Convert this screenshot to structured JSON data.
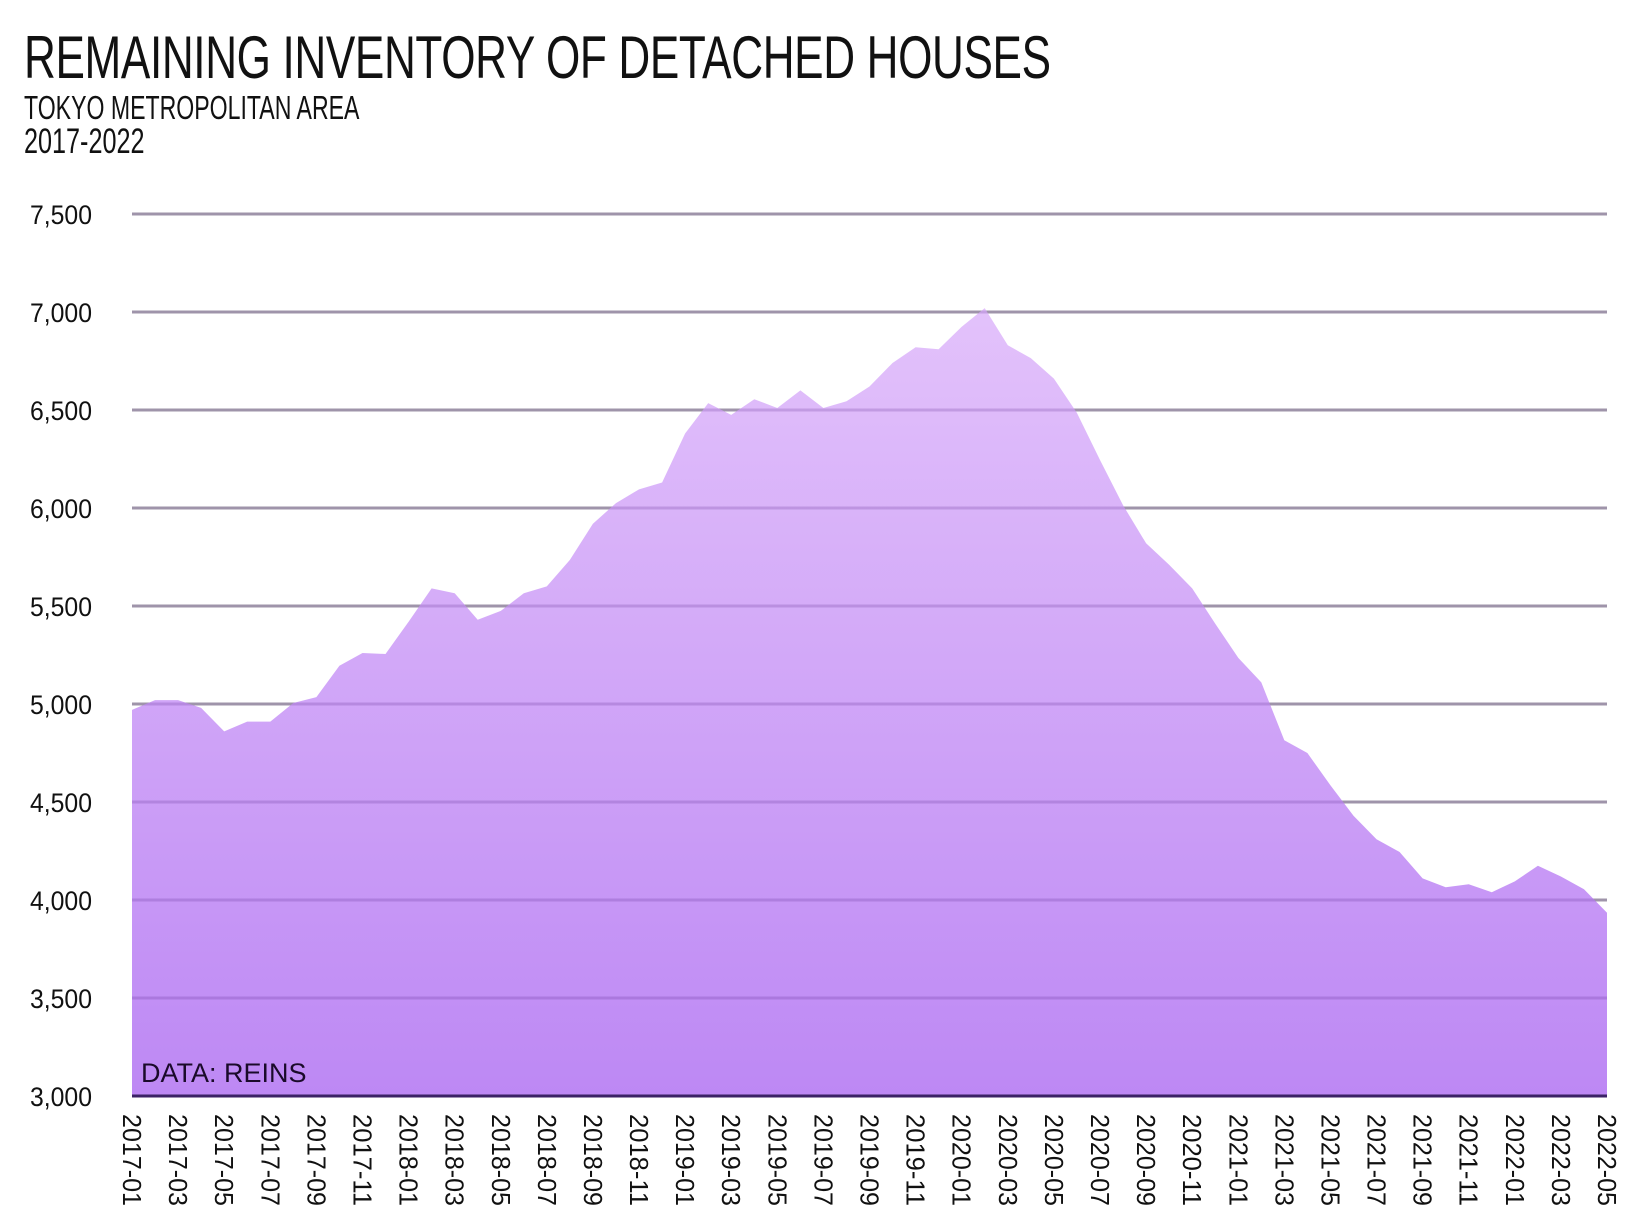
{
  "header": {
    "title": "REMAINING INVENTORY OF DETACHED HOUSES",
    "subtitle": "TOKYO METROPOLITAN AREA",
    "years": "2017-2022"
  },
  "source_note": "DATA: REINS",
  "colors": {
    "fill_top": "#e3c2fb",
    "fill_bottom": "#bd88f4",
    "gridline": "#b3b3b3",
    "baseline": "#3b2266"
  },
  "chart_data": {
    "type": "area",
    "title": "REMAINING INVENTORY OF DETACHED HOUSES",
    "subtitle": "TOKYO METROPOLITAN AREA, 2017-2022",
    "xlabel": "",
    "ylabel": "",
    "ylim": [
      3000,
      7500
    ],
    "yticks": [
      3000,
      3500,
      4000,
      4500,
      5000,
      5500,
      6000,
      6500,
      7000,
      7500
    ],
    "ytick_labels": [
      "3,000",
      "3,500",
      "4,000",
      "4,500",
      "5,000",
      "5,500",
      "6,000",
      "6,500",
      "7,000",
      "7,500"
    ],
    "xtick_labels": [
      "2017-01",
      "2017-03",
      "2017-05",
      "2017-07",
      "2017-09",
      "2017-11",
      "2018-01",
      "2018-03",
      "2018-05",
      "2018-07",
      "2018-09",
      "2018-11",
      "2019-01",
      "2019-03",
      "2019-05",
      "2019-07",
      "2019-09",
      "2019-11",
      "2020-01",
      "2020-03",
      "2020-05",
      "2020-07",
      "2020-09",
      "2020-11",
      "2021-01",
      "2021-03",
      "2021-05",
      "2021-07",
      "2021-09",
      "2021-11",
      "2022-01",
      "2022-03",
      "2022-05"
    ],
    "grid": true,
    "legend": null,
    "annotations": [
      "DATA: REINS"
    ],
    "x": [
      "2017-01",
      "2017-02",
      "2017-03",
      "2017-04",
      "2017-05",
      "2017-06",
      "2017-07",
      "2017-08",
      "2017-09",
      "2017-10",
      "2017-11",
      "2017-12",
      "2018-01",
      "2018-02",
      "2018-03",
      "2018-04",
      "2018-05",
      "2018-06",
      "2018-07",
      "2018-08",
      "2018-09",
      "2018-10",
      "2018-11",
      "2018-12",
      "2019-01",
      "2019-02",
      "2019-03",
      "2019-04",
      "2019-05",
      "2019-06",
      "2019-07",
      "2019-08",
      "2019-09",
      "2019-10",
      "2019-11",
      "2019-12",
      "2020-01",
      "2020-02",
      "2020-03",
      "2020-04",
      "2020-05",
      "2020-06",
      "2020-07",
      "2020-08",
      "2020-09",
      "2020-10",
      "2020-11",
      "2020-12",
      "2021-01",
      "2021-02",
      "2021-03",
      "2021-04",
      "2021-05",
      "2021-06",
      "2021-07",
      "2021-08",
      "2021-09",
      "2021-10",
      "2021-11",
      "2021-12",
      "2022-01",
      "2022-02",
      "2022-03",
      "2022-04",
      "2022-05"
    ],
    "series": [
      {
        "name": "Remaining inventory (detached houses)",
        "values": [
          4970,
          5020,
          5020,
          4980,
          4860,
          4910,
          4910,
          5005,
          5035,
          5195,
          5260,
          5255,
          5420,
          5590,
          5565,
          5430,
          5475,
          5565,
          5600,
          5735,
          5920,
          6025,
          6095,
          6130,
          6380,
          6535,
          6475,
          6555,
          6510,
          6600,
          6510,
          6545,
          6620,
          6740,
          6820,
          6810,
          6925,
          7020,
          6830,
          6765,
          6660,
          6485,
          6245,
          6015,
          5820,
          5710,
          5590,
          5410,
          5235,
          5110,
          4815,
          4750,
          4585,
          4430,
          4310,
          4245,
          4110,
          4065,
          4080,
          4040,
          4095,
          4175,
          4120,
          4055,
          3935
        ]
      }
    ]
  }
}
